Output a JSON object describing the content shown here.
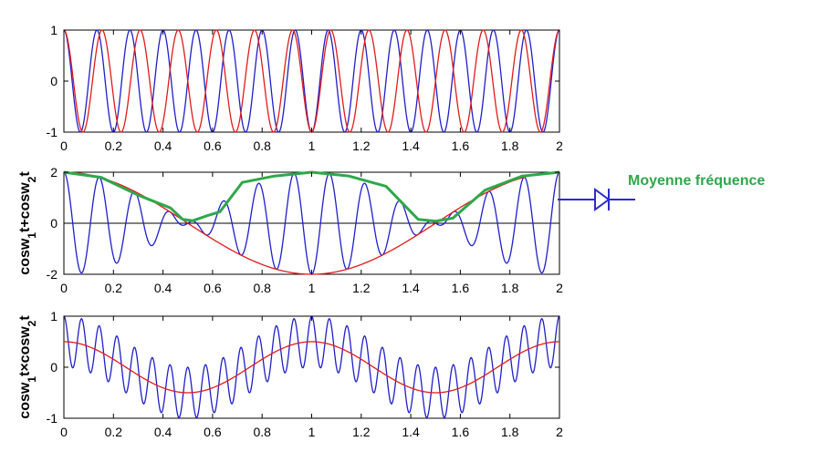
{
  "colors": {
    "blue": "#1f1fcc",
    "red": "#e31a1a",
    "green": "#2ea84a",
    "axis": "#000000",
    "annotation_arrow": "#2c2cc8"
  },
  "annotation": {
    "text": "Moyenne fréquence",
    "color": "#2ea84a",
    "symbol": "diode-arrow-icon"
  },
  "chart_data": [
    {
      "type": "line",
      "title": "",
      "xlabel": "",
      "ylabel": "",
      "xlim": [
        0,
        2
      ],
      "ylim": [
        -1,
        1
      ],
      "x_ticks": [
        "0",
        "0.2",
        "0.4",
        "0.6",
        "0.8",
        "1",
        "1.2",
        "1.4",
        "1.6",
        "1.8",
        "2"
      ],
      "y_ticks": [
        "-1",
        "0",
        "1"
      ],
      "grid": false,
      "series": [
        {
          "color": "#1f1fcc",
          "function": "cos(2*pi*7.5*x)",
          "x_range": [
            0,
            2
          ],
          "y_range": [
            -1,
            1
          ]
        },
        {
          "color": "#e31a1a",
          "function": "cos(2*pi*6.5*x)",
          "x_range": [
            0,
            2
          ],
          "y_range": [
            -1,
            1
          ]
        }
      ]
    },
    {
      "type": "line",
      "title": "",
      "xlabel": "",
      "ylabel": "cosw1t+cosw2t",
      "ylabel_parts": {
        "a": "cosw",
        "b": "1",
        "c": "t+cosw",
        "d": "2",
        "e": "t"
      },
      "xlim": [
        0,
        2
      ],
      "ylim": [
        -2,
        2
      ],
      "x_ticks": [
        "0",
        "0.2",
        "0.4",
        "0.6",
        "0.8",
        "1",
        "1.2",
        "1.4",
        "1.6",
        "1.8",
        "2"
      ],
      "y_ticks": [
        "-2",
        "0",
        "2"
      ],
      "grid": false,
      "zero_line": true,
      "series": [
        {
          "color": "#1f1fcc",
          "function": "cos(2*pi*7.5*x)+cos(2*pi*6.5*x)",
          "y_range": [
            -2,
            2
          ]
        },
        {
          "color": "#e31a1a",
          "function": "2*cos(pi*x)",
          "y_range": [
            -2,
            2
          ]
        },
        {
          "color": "#2ea84a",
          "description_points": [
            [
              0,
              2
            ],
            [
              0.15,
              1.8
            ],
            [
              0.3,
              1.1
            ],
            [
              0.43,
              0.6
            ],
            [
              0.48,
              0.15
            ],
            [
              0.52,
              0.1
            ],
            [
              0.58,
              0.3
            ],
            [
              0.63,
              0.45
            ],
            [
              0.72,
              1.6
            ],
            [
              0.85,
              1.85
            ],
            [
              1.0,
              2.0
            ],
            [
              1.15,
              1.85
            ],
            [
              1.3,
              1.45
            ],
            [
              1.43,
              0.15
            ],
            [
              1.5,
              0.08
            ],
            [
              1.57,
              0.2
            ],
            [
              1.7,
              1.3
            ],
            [
              1.85,
              1.85
            ],
            [
              2.0,
              2.0
            ]
          ]
        }
      ]
    },
    {
      "type": "line",
      "title": "",
      "xlabel": "",
      "ylabel": "cosw1t×cosw2t",
      "ylabel_parts": {
        "a": "cosw",
        "b": "1",
        "c": "t×cosw",
        "d": "2",
        "e": "t"
      },
      "xlim": [
        0,
        2
      ],
      "ylim": [
        -1,
        1
      ],
      "x_ticks": [
        "0",
        "0.2",
        "0.4",
        "0.6",
        "0.8",
        "1",
        "1.2",
        "1.4",
        "1.6",
        "1.8",
        "2"
      ],
      "y_ticks": [
        "-1",
        "0",
        "1"
      ],
      "grid": false,
      "series": [
        {
          "color": "#1f1fcc",
          "function": "cos(2*pi*7.5*x)*cos(2*pi*6.5*x)",
          "y_range": [
            -1,
            1
          ]
        },
        {
          "color": "#e31a1a",
          "function": "0.5*cos(2*pi*x)",
          "y_range": [
            -0.5,
            0.5
          ]
        }
      ]
    }
  ]
}
